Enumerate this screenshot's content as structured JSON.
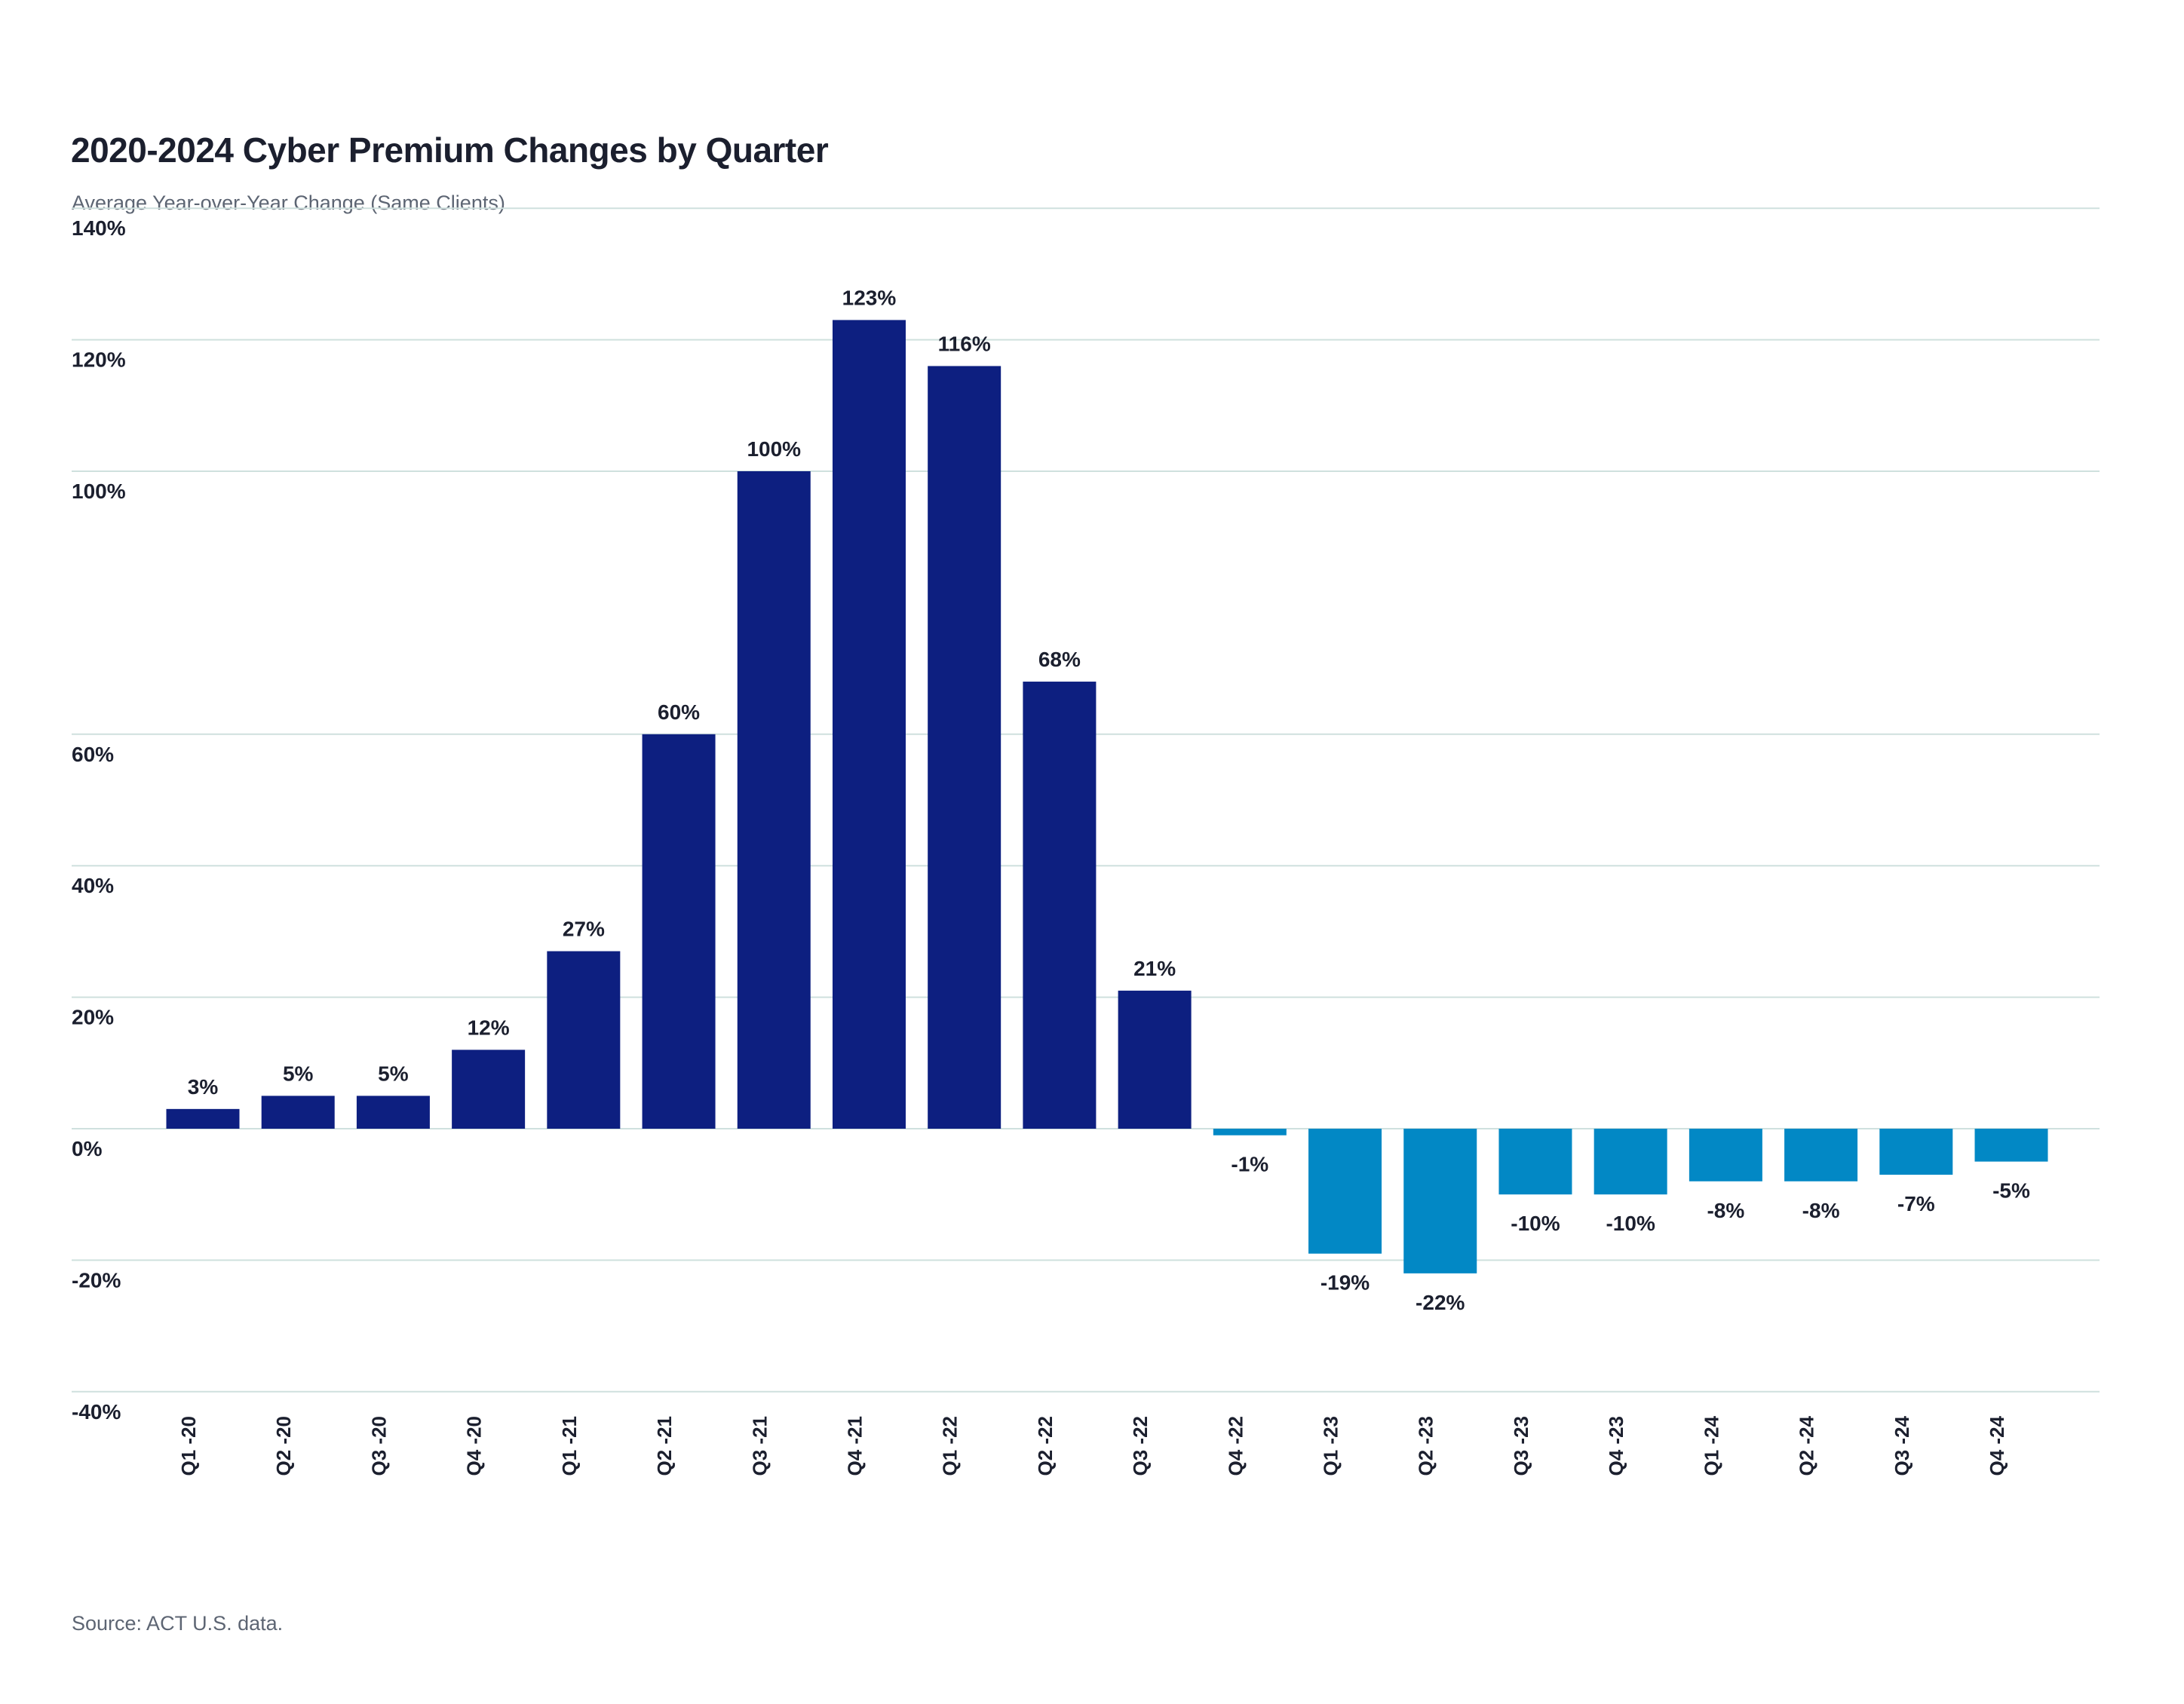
{
  "chart_data": {
    "type": "bar",
    "title": "2020-2024 Cyber Premium Changes by Quarter",
    "subtitle": "Average Year-over-Year Change (Same Clients)",
    "source": "Source: ACT U.S. data.",
    "xlabel": "",
    "ylabel": "",
    "grid": true,
    "legend": "none",
    "categories": [
      "Q1 -20",
      "Q2 -20",
      "Q3 -20",
      "Q4 -20",
      "Q1 -21",
      "Q2 -21",
      "Q3 -21",
      "Q4 -21",
      "Q1 -22",
      "Q2 -22",
      "Q3 -22",
      "Q4 -22",
      "Q1 -23",
      "Q2 -23",
      "Q3 -23",
      "Q4 -23",
      "Q1 -24",
      "Q2 -24",
      "Q3 -24",
      "Q4 -24"
    ],
    "values": [
      3,
      5,
      5,
      12,
      27,
      60,
      100,
      123,
      116,
      68,
      21,
      -1,
      -19,
      -22,
      -10,
      -10,
      -8,
      -8,
      -7,
      -5
    ],
    "data_labels": [
      "3%",
      "5%",
      "5%",
      "12%",
      "27%",
      "60%",
      "100%",
      "123%",
      "116%",
      "68%",
      "21%",
      "-1%",
      "-19%",
      "-22%",
      "-10%",
      "-10%",
      "-8%",
      "-8%",
      "-7%",
      "-5%"
    ],
    "y_ticks": [
      {
        "value": 140,
        "label": "140%"
      },
      {
        "value": 120,
        "label": "120%"
      },
      {
        "value": 100,
        "label": "100%"
      },
      {
        "value": 60,
        "label": "60%"
      },
      {
        "value": 40,
        "label": "40%"
      },
      {
        "value": 20,
        "label": "20%"
      },
      {
        "value": 0,
        "label": "0%"
      },
      {
        "value": -20,
        "label": "-20%"
      },
      {
        "value": -40,
        "label": "-40%"
      }
    ],
    "ylim": [
      -40,
      140
    ],
    "colors": {
      "positive": "#0d1f80",
      "negative": "#0288c5",
      "grid": "#cfe0de",
      "text": "#1b1f2e"
    }
  }
}
